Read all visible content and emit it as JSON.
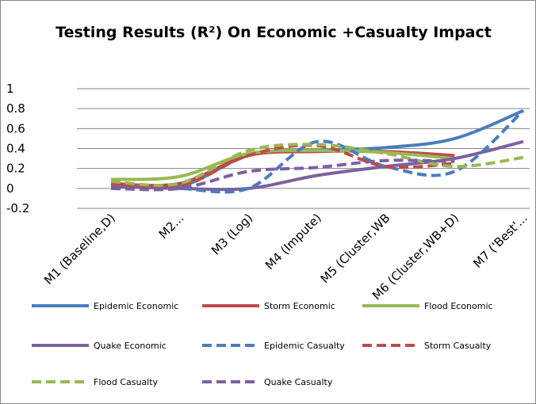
{
  "chart_data": {
    "type": "line",
    "title": "Testing Results (R²) On Economic +Casualty Impact",
    "categories": [
      "M1 (Baseline,D)",
      "M2...",
      "M3 (Log)",
      "M4 (Impute)",
      "M5 (Cluster,WB",
      "M6 (Cluster,WB+D)",
      "M7 ('Best'..."
    ],
    "ylim": [
      -0.2,
      1
    ],
    "yticks": [
      -0.2,
      0,
      0.2,
      0.4,
      0.6,
      0.8,
      1
    ],
    "grid": true,
    "smooth": true,
    "series": [
      {
        "name": "Epidemic Economic",
        "color": "#4a7ebb",
        "dash": false,
        "values": [
          0.05,
          0.02,
          0.33,
          0.38,
          0.41,
          0.5,
          0.78
        ]
      },
      {
        "name": "Storm Economic",
        "color": "#be4b48",
        "dash": false,
        "values": [
          0.05,
          0.05,
          0.33,
          0.37,
          0.37,
          0.33,
          null
        ]
      },
      {
        "name": "Flood Economic",
        "color": "#98b954",
        "dash": false,
        "values": [
          0.09,
          0.12,
          0.35,
          0.38,
          0.36,
          0.3,
          null
        ]
      },
      {
        "name": "Quake Economic",
        "color": "#7d60a0",
        "dash": false,
        "values": [
          0.02,
          0.0,
          0.0,
          0.13,
          0.22,
          0.3,
          0.47
        ]
      },
      {
        "name": "Epidemic Casualty",
        "color": "#4a7ebb",
        "dash": true,
        "values": [
          0.05,
          0.0,
          0.0,
          0.47,
          0.22,
          0.17,
          0.78
        ]
      },
      {
        "name": "Storm Casualty",
        "color": "#be4b48",
        "dash": true,
        "values": [
          0.05,
          0.02,
          0.33,
          0.43,
          0.22,
          0.25,
          null
        ]
      },
      {
        "name": "Flood Casualty",
        "color": "#98b954",
        "dash": true,
        "values": [
          0.07,
          0.05,
          0.38,
          0.44,
          0.35,
          0.22,
          0.31
        ]
      },
      {
        "name": "Quake Casualty",
        "color": "#7d60a0",
        "dash": true,
        "values": [
          0.0,
          0.0,
          0.17,
          0.21,
          0.28,
          0.27,
          null
        ]
      }
    ]
  }
}
